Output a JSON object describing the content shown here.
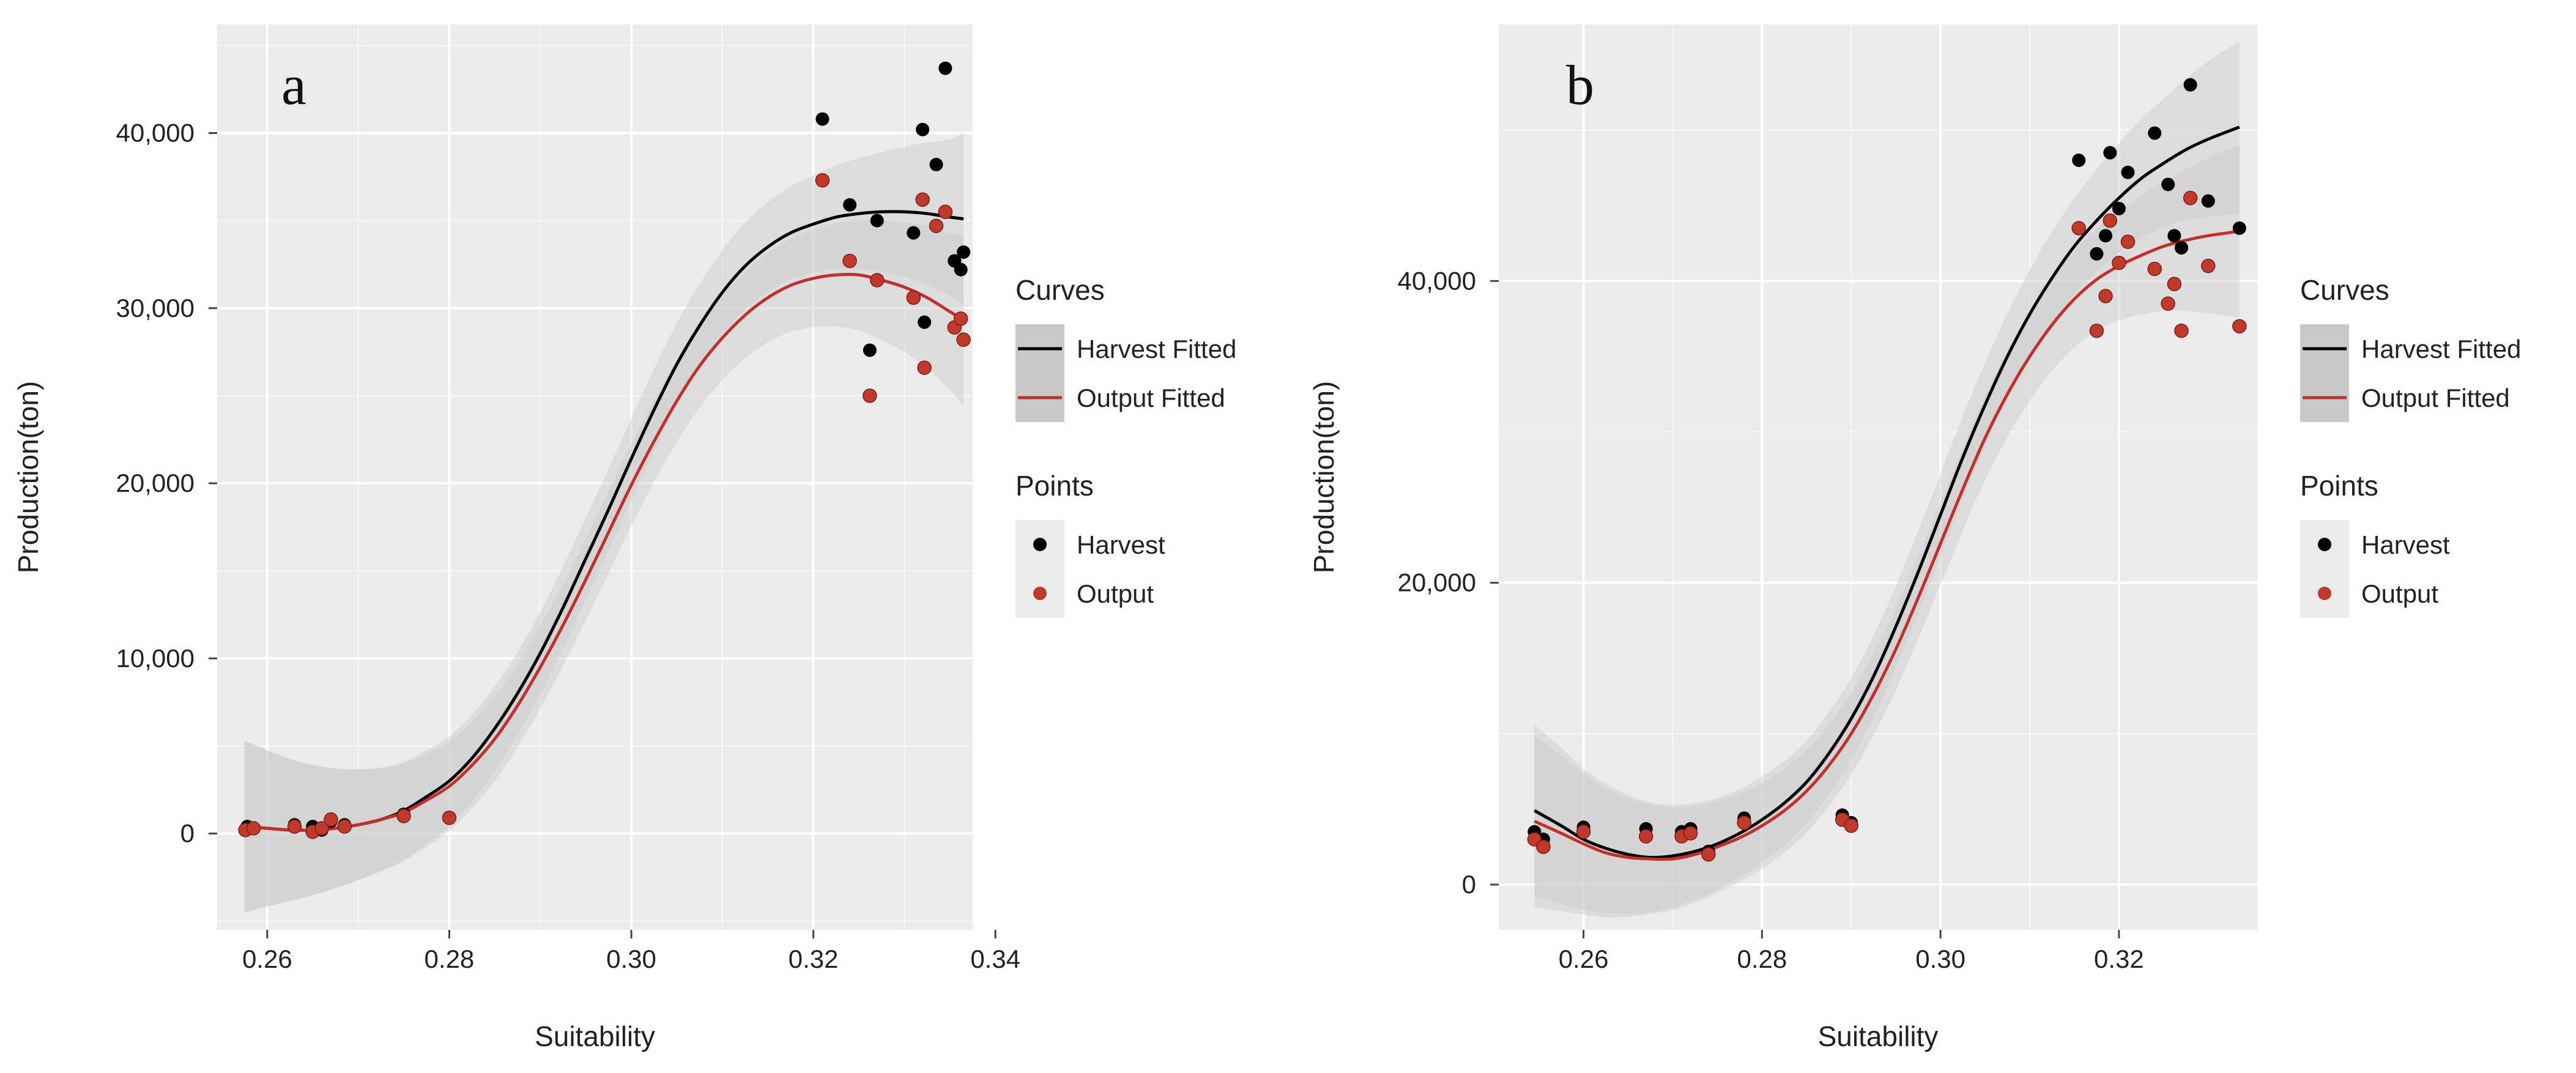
{
  "colors": {
    "panel_bg": "#ebebeb",
    "grid": "#ffffff",
    "band": "#c9c9c9",
    "harvest": "#000000",
    "output": "#c0302d",
    "output_point": "#c0392b",
    "tick": "#444444",
    "text": "#222222"
  },
  "chart_data": [
    {
      "type": "scatter",
      "panel_label": "a",
      "xlabel": "Suitability",
      "ylabel": "Production(ton)",
      "xlim": [
        0.2545,
        0.3375
      ],
      "ylim": [
        -5500,
        46200
      ],
      "x_ticks": [
        0.26,
        0.28,
        0.3,
        0.32,
        0.34
      ],
      "x_tick_labels": [
        "0.26",
        "0.28",
        "0.30",
        "0.32",
        "0.34"
      ],
      "y_ticks": [
        0,
        10000,
        20000,
        30000,
        40000
      ],
      "y_tick_labels": [
        "0",
        "10,000",
        "20,000",
        "30,000",
        "40,000"
      ],
      "legend": {
        "curves_title": "Curves",
        "curves": [
          "Harvest Fitted",
          "Output Fitted"
        ],
        "points_title": "Points",
        "points": [
          "Harvest",
          "Output"
        ]
      },
      "series": [
        {
          "name": "Harvest",
          "x": [
            0.2578,
            0.2585,
            0.263,
            0.265,
            0.266,
            0.267,
            0.2685,
            0.275,
            0.28,
            0.321,
            0.324,
            0.3262,
            0.327,
            0.331,
            0.332,
            0.3322,
            0.3335,
            0.3345,
            0.3355,
            0.3362,
            0.3365
          ],
          "y": [
            400,
            300,
            500,
            400,
            200,
            700,
            500,
            1100,
            900,
            40800,
            35900,
            27600,
            35000,
            34300,
            40200,
            29200,
            38200,
            43700,
            32700,
            32200,
            33200
          ]
        },
        {
          "name": "Output",
          "x": [
            0.2576,
            0.2585,
            0.263,
            0.265,
            0.266,
            0.267,
            0.2685,
            0.275,
            0.28,
            0.321,
            0.324,
            0.3262,
            0.327,
            0.331,
            0.332,
            0.3322,
            0.3335,
            0.3345,
            0.3355,
            0.3362,
            0.3365
          ],
          "y": [
            200,
            300,
            400,
            100,
            300,
            800,
            400,
            1000,
            900,
            37300,
            32700,
            25000,
            31600,
            30600,
            36200,
            26600,
            34700,
            35500,
            28900,
            29400,
            28200
          ]
        },
        {
          "name": "Harvest Fitted",
          "x": [
            0.2575,
            0.26,
            0.2625,
            0.265,
            0.2675,
            0.27,
            0.2725,
            0.275,
            0.2775,
            0.28,
            0.2825,
            0.285,
            0.2875,
            0.29,
            0.2925,
            0.295,
            0.2975,
            0.3,
            0.3025,
            0.305,
            0.3075,
            0.31,
            0.3125,
            0.315,
            0.3175,
            0.32,
            0.3225,
            0.325,
            0.3275,
            0.33,
            0.3325,
            0.335,
            0.3365
          ],
          "y": [
            400,
            300,
            200,
            200,
            300,
            500,
            800,
            1300,
            2100,
            3000,
            4300,
            6000,
            8000,
            10300,
            12900,
            15700,
            18500,
            21400,
            24200,
            26800,
            29000,
            30900,
            32400,
            33500,
            34300,
            34800,
            35200,
            35400,
            35500,
            35500,
            35400,
            35200,
            35100
          ]
        },
        {
          "name": "Output Fitted",
          "x": [
            0.2575,
            0.26,
            0.2625,
            0.265,
            0.2675,
            0.27,
            0.2725,
            0.275,
            0.2775,
            0.28,
            0.2825,
            0.285,
            0.2875,
            0.29,
            0.2925,
            0.295,
            0.2975,
            0.3,
            0.3025,
            0.305,
            0.3075,
            0.31,
            0.3125,
            0.315,
            0.3175,
            0.32,
            0.3225,
            0.325,
            0.3275,
            0.33,
            0.3325,
            0.335,
            0.3365
          ],
          "y": [
            400,
            300,
            200,
            200,
            300,
            500,
            800,
            1200,
            1900,
            2700,
            3900,
            5400,
            7300,
            9500,
            11900,
            14500,
            17200,
            19900,
            22400,
            24700,
            26700,
            28300,
            29600,
            30600,
            31300,
            31700,
            31900,
            31900,
            31600,
            31200,
            30600,
            29800,
            29300
          ]
        }
      ]
    },
    {
      "type": "scatter",
      "panel_label": "b",
      "xlabel": "Suitability",
      "ylabel": "Production(ton)",
      "xlim": [
        0.2505,
        0.3355
      ],
      "ylim": [
        -3000,
        57000
      ],
      "x_ticks": [
        0.26,
        0.28,
        0.3,
        0.32
      ],
      "x_tick_labels": [
        "0.26",
        "0.28",
        "0.30",
        "0.32"
      ],
      "y_ticks": [
        0,
        20000,
        40000
      ],
      "y_tick_labels": [
        "0",
        "20,000",
        "40,000"
      ],
      "legend": {
        "curves_title": "Curves",
        "curves": [
          "Harvest Fitted",
          "Output Fitted"
        ],
        "points_title": "Points",
        "points": [
          "Harvest",
          "Output"
        ]
      },
      "series": [
        {
          "name": "Harvest",
          "x": [
            0.2545,
            0.2555,
            0.26,
            0.267,
            0.271,
            0.272,
            0.274,
            0.278,
            0.289,
            0.29,
            0.3155,
            0.3175,
            0.3185,
            0.319,
            0.32,
            0.321,
            0.324,
            0.3255,
            0.3262,
            0.327,
            0.328,
            0.33,
            0.3335
          ],
          "y": [
            3500,
            3000,
            3800,
            3700,
            3500,
            3700,
            2200,
            4400,
            4600,
            4100,
            48000,
            41800,
            43000,
            48500,
            44800,
            47200,
            49800,
            46400,
            43000,
            42200,
            53000,
            45300,
            43500
          ]
        },
        {
          "name": "Output",
          "x": [
            0.2545,
            0.2555,
            0.26,
            0.267,
            0.271,
            0.272,
            0.274,
            0.278,
            0.289,
            0.29,
            0.3155,
            0.3175,
            0.3185,
            0.319,
            0.32,
            0.321,
            0.324,
            0.3255,
            0.3262,
            0.327,
            0.328,
            0.33,
            0.3335
          ],
          "y": [
            3000,
            2500,
            3500,
            3200,
            3200,
            3400,
            2000,
            4100,
            4300,
            3900,
            43500,
            36700,
            39000,
            44000,
            41200,
            42600,
            40800,
            38500,
            39800,
            36700,
            45500,
            41000,
            37000
          ]
        },
        {
          "name": "Harvest Fitted",
          "x": [
            0.2545,
            0.2575,
            0.26,
            0.2625,
            0.265,
            0.2675,
            0.27,
            0.2725,
            0.275,
            0.2775,
            0.28,
            0.2825,
            0.285,
            0.2875,
            0.29,
            0.2925,
            0.295,
            0.2975,
            0.3,
            0.3025,
            0.305,
            0.3075,
            0.31,
            0.3125,
            0.315,
            0.3175,
            0.32,
            0.3225,
            0.325,
            0.3275,
            0.33,
            0.3335
          ],
          "y": [
            4900,
            3900,
            3000,
            2400,
            2000,
            1800,
            1900,
            2200,
            2700,
            3400,
            4300,
            5400,
            6800,
            8700,
            11000,
            13800,
            17100,
            20700,
            24500,
            28300,
            31800,
            35000,
            37800,
            40200,
            42300,
            44000,
            45500,
            46800,
            47800,
            48700,
            49400,
            50200
          ]
        },
        {
          "name": "Output Fitted",
          "x": [
            0.2545,
            0.2575,
            0.26,
            0.2625,
            0.265,
            0.2675,
            0.27,
            0.2725,
            0.275,
            0.2775,
            0.28,
            0.2825,
            0.285,
            0.2875,
            0.29,
            0.2925,
            0.295,
            0.2975,
            0.3,
            0.3025,
            0.305,
            0.3075,
            0.31,
            0.3125,
            0.315,
            0.3175,
            0.32,
            0.3225,
            0.325,
            0.3275,
            0.33,
            0.3335
          ],
          "y": [
            4200,
            3400,
            2700,
            2100,
            1800,
            1700,
            1700,
            2000,
            2500,
            3100,
            3900,
            4900,
            6200,
            7900,
            10000,
            12600,
            15600,
            19000,
            22600,
            26200,
            29600,
            32500,
            35000,
            37100,
            38800,
            40100,
            41000,
            41700,
            42300,
            42700,
            43000,
            43300
          ]
        }
      ]
    }
  ]
}
